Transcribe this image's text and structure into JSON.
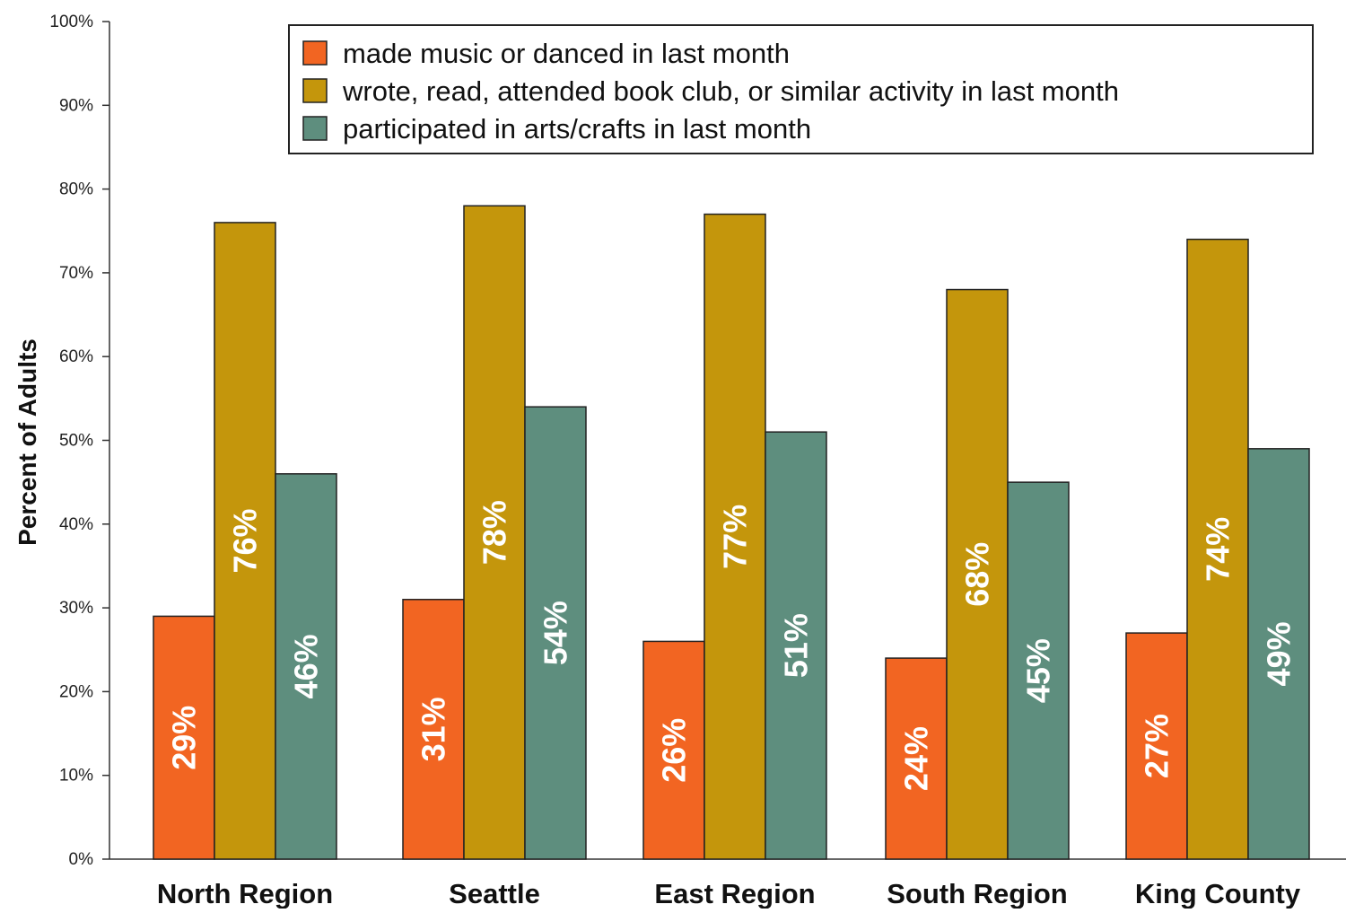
{
  "chart_data": {
    "type": "bar",
    "title": "",
    "xlabel": "",
    "ylabel": "Percent of Adults",
    "ylim": [
      0,
      100
    ],
    "y_ticks": [
      "0%",
      "10%",
      "20%",
      "30%",
      "40%",
      "50%",
      "60%",
      "70%",
      "80%",
      "90%",
      "100%"
    ],
    "categories": [
      "North Region",
      "Seattle",
      "East Region",
      "South Region",
      "King County"
    ],
    "series": [
      {
        "name": "made music or danced in last month",
        "color": "#f26522",
        "values": [
          29,
          31,
          26,
          24,
          27
        ],
        "labels": [
          "29%",
          "31%",
          "26%",
          "24%",
          "27%"
        ]
      },
      {
        "name": "wrote, read, attended book club, or similar activity in last month",
        "color": "#c4960c",
        "values": [
          76,
          78,
          77,
          68,
          74
        ],
        "labels": [
          "76%",
          "78%",
          "77%",
          "68%",
          "74%"
        ]
      },
      {
        "name": "participated in arts/crafts in last month",
        "color": "#5e8e7e",
        "values": [
          46,
          54,
          51,
          45,
          49
        ],
        "labels": [
          "46%",
          "54%",
          "51%",
          "45%",
          "49%"
        ]
      }
    ],
    "legend_position": "top-right",
    "grid": false
  }
}
